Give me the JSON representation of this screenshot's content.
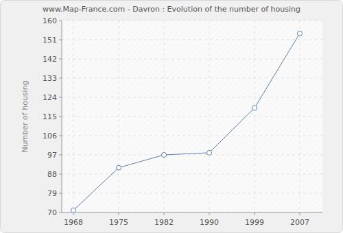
{
  "chart_data": {
    "type": "line",
    "title": "www.Map-France.com - Davron : Evolution of the number of housing",
    "y_label": "Number of housing",
    "categories": [
      "1968",
      "1975",
      "1982",
      "1990",
      "1999",
      "2007"
    ],
    "values": [
      71,
      91,
      97,
      98,
      119,
      154
    ],
    "color": "#5a7fa8",
    "marker": "circle",
    "ylim": [
      70,
      160
    ],
    "yticks": [
      70,
      79,
      88,
      97,
      106,
      115,
      124,
      133,
      142,
      151,
      160
    ],
    "grid": true
  }
}
